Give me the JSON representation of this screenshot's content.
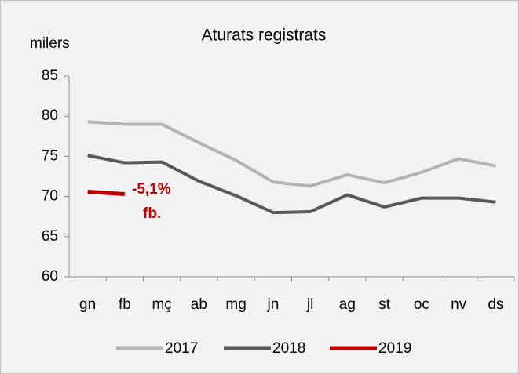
{
  "chart_data": {
    "type": "line",
    "title": "Aturats registrats",
    "y_label": "milers",
    "categories": [
      "gn",
      "fb",
      "mç",
      "ab",
      "mg",
      "jn",
      "jl",
      "ag",
      "st",
      "oc",
      "nv",
      "ds"
    ],
    "series": [
      {
        "name": "2017",
        "color": "#b3b3b3",
        "values": [
          79.3,
          79.0,
          79.0,
          76.7,
          74.5,
          71.8,
          71.3,
          72.7,
          71.7,
          73.0,
          74.7,
          73.8
        ]
      },
      {
        "name": "2018",
        "color": "#595959",
        "values": [
          75.1,
          74.2,
          74.3,
          71.9,
          70.1,
          68.0,
          68.1,
          70.2,
          68.7,
          69.8,
          69.8,
          69.3
        ]
      },
      {
        "name": "2019",
        "color": "#c00000",
        "values": [
          70.6,
          70.3,
          null,
          null,
          null,
          null,
          null,
          null,
          null,
          null,
          null,
          null
        ]
      }
    ],
    "annotations": [
      "-5,1%",
      "fb."
    ],
    "ylim": [
      60,
      85
    ],
    "yticks": [
      60,
      65,
      70,
      75,
      80,
      85
    ],
    "legend": "bottom"
  }
}
